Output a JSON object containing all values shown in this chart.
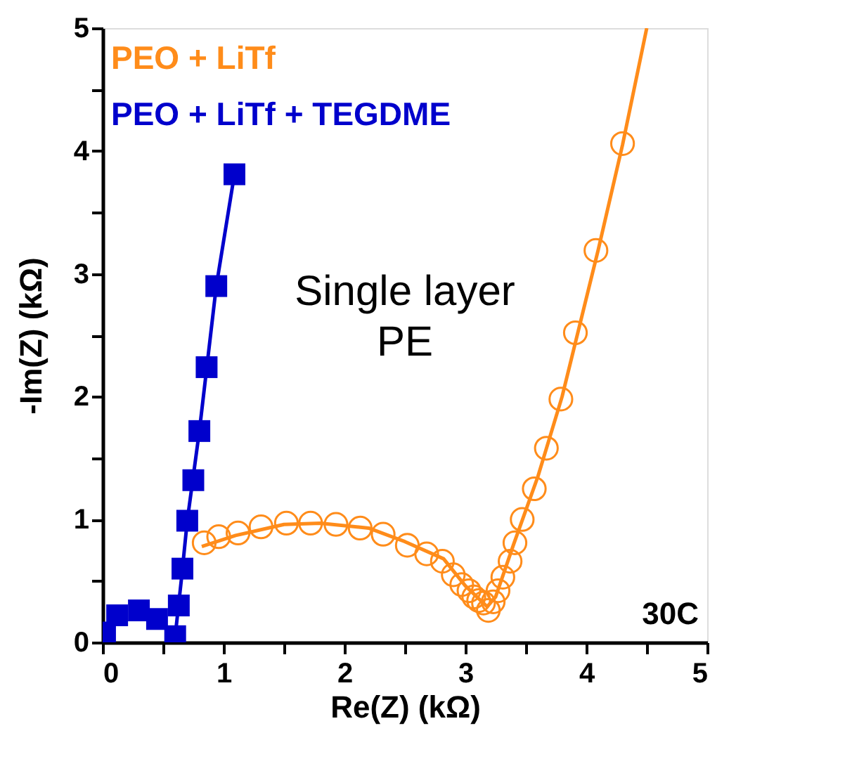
{
  "chart_data": {
    "type": "scatter",
    "xlabel": "Re(Z) (kΩ)",
    "ylabel": "-Im(Z) (kΩ)",
    "xlim": [
      0,
      5
    ],
    "ylim": [
      0,
      5
    ],
    "xticks": [
      0,
      {
        "value": 0.5,
        "label": null
      },
      1,
      {
        "value": 1.5,
        "label": null
      },
      2,
      {
        "value": 2.5,
        "label": null
      },
      3,
      {
        "value": 3.5,
        "label": null
      },
      4,
      {
        "value": 4.5,
        "label": null
      },
      5
    ],
    "yticks": [
      0,
      {
        "value": 0.5,
        "label": null
      },
      1,
      {
        "value": 1.5,
        "label": null
      },
      2,
      {
        "value": 2.5,
        "label": null
      },
      3,
      {
        "value": 3.5,
        "label": null
      },
      4,
      {
        "value": 4.5,
        "label": null
      },
      5
    ],
    "grid": false,
    "legend": "top left",
    "annotations": [
      "Single layer\nPE",
      "30C"
    ],
    "series": [
      {
        "name": "PEO + LiTf",
        "marker": "circle",
        "color": "#ff8c1a",
        "x": [
          0.84,
          0.96,
          1.12,
          1.31,
          1.52,
          1.72,
          1.93,
          2.13,
          2.32,
          2.52,
          2.68,
          2.81,
          2.9,
          2.97,
          3.03,
          3.07,
          3.11,
          3.15,
          3.19,
          3.23,
          3.27,
          3.31,
          3.37,
          3.41,
          3.47,
          3.57,
          3.67,
          3.79,
          3.91,
          4.08,
          4.3
        ],
        "values": [
          0.81,
          0.86,
          0.89,
          0.94,
          0.97,
          0.97,
          0.96,
          0.93,
          0.88,
          0.79,
          0.72,
          0.66,
          0.55,
          0.47,
          0.42,
          0.37,
          0.34,
          0.32,
          0.26,
          0.33,
          0.42,
          0.53,
          0.66,
          0.81,
          1.0,
          1.25,
          1.58,
          1.98,
          2.52,
          3.19,
          4.06
        ]
      },
      {
        "type": "line",
        "color": "#ff8c1a",
        "x": [
          0.82,
          1.1,
          1.5,
          1.8,
          2.2,
          2.5,
          2.82,
          3.0,
          3.18,
          3.25,
          3.4,
          3.6,
          3.8,
          4.1,
          4.3,
          4.5
        ],
        "values": [
          0.78,
          0.87,
          0.96,
          0.97,
          0.93,
          0.82,
          0.68,
          0.46,
          0.29,
          0.37,
          0.8,
          1.35,
          2.0,
          3.2,
          4.05,
          5.0
        ]
      },
      {
        "name": "PEO + LiTf + TEGDME",
        "marker": "square",
        "color": "#0000cc",
        "x": [
          0.02,
          0.12,
          0.3,
          0.45,
          0.6,
          0.63,
          0.66,
          0.7,
          0.75,
          0.8,
          0.86,
          0.94,
          1.09
        ],
        "values": [
          0.08,
          0.22,
          0.26,
          0.19,
          0.05,
          0.3,
          0.6,
          0.99,
          1.32,
          1.72,
          2.24,
          2.9,
          3.81
        ]
      },
      {
        "type": "line",
        "color": "#0000cc",
        "x": [
          0.6,
          0.65,
          0.7,
          0.8,
          0.94,
          1.09
        ],
        "values": [
          0.05,
          0.5,
          0.99,
          1.72,
          2.9,
          3.81
        ]
      }
    ]
  }
}
